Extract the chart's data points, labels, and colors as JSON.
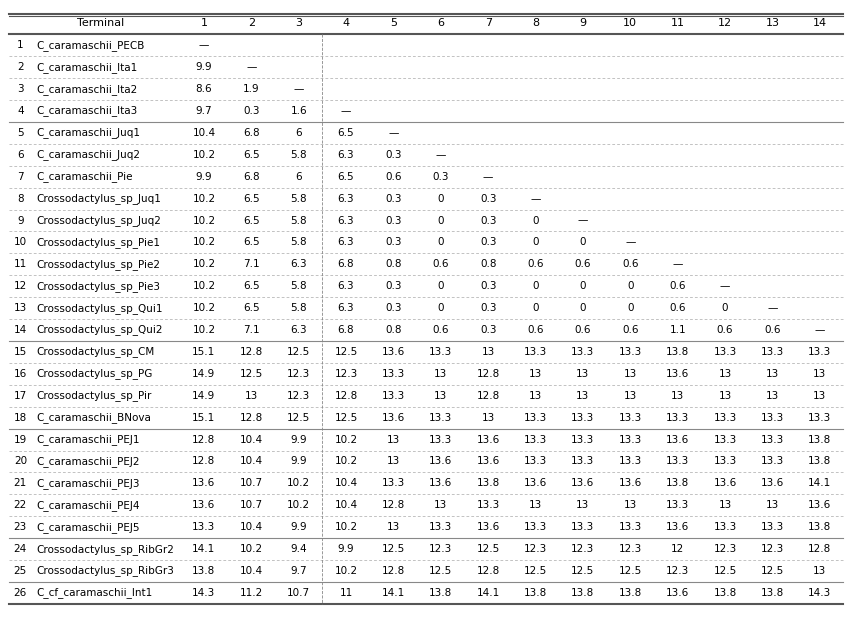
{
  "col_headers": [
    "Terminal",
    "1",
    "2",
    "3",
    "4",
    "5",
    "6",
    "7",
    "8",
    "9",
    "10",
    "11",
    "12",
    "13",
    "14"
  ],
  "rows": [
    [
      "1",
      "C_caramaschii_PECB",
      "—",
      "",
      "",
      "",
      "",
      "",
      "",
      "",
      "",
      "",
      "",
      "",
      "",
      ""
    ],
    [
      "2",
      "C_caramaschii_Ita1",
      "9.9",
      "—",
      "",
      "",
      "",
      "",
      "",
      "",
      "",
      "",
      "",
      "",
      "",
      ""
    ],
    [
      "3",
      "C_caramaschii_Ita2",
      "8.6",
      "1.9",
      "—",
      "",
      "",
      "",
      "",
      "",
      "",
      "",
      "",
      "",
      "",
      ""
    ],
    [
      "4",
      "C_caramaschii_Ita3",
      "9.7",
      "0.3",
      "1.6",
      "—",
      "",
      "",
      "",
      "",
      "",
      "",
      "",
      "",
      "",
      ""
    ],
    [
      "5",
      "C_caramaschii_Juq1",
      "10.4",
      "6.8",
      "6",
      "6.5",
      "—",
      "",
      "",
      "",
      "",
      "",
      "",
      "",
      "",
      ""
    ],
    [
      "6",
      "C_caramaschii_Juq2",
      "10.2",
      "6.5",
      "5.8",
      "6.3",
      "0.3",
      "—",
      "",
      "",
      "",
      "",
      "",
      "",
      "",
      ""
    ],
    [
      "7",
      "C_caramaschii_Pie",
      "9.9",
      "6.8",
      "6",
      "6.5",
      "0.6",
      "0.3",
      "—",
      "",
      "",
      "",
      "",
      "",
      "",
      ""
    ],
    [
      "8",
      "Crossodactylus_sp_Juq1",
      "10.2",
      "6.5",
      "5.8",
      "6.3",
      "0.3",
      "0",
      "0.3",
      "—",
      "",
      "",
      "",
      "",
      "",
      ""
    ],
    [
      "9",
      "Crossodactylus_sp_Juq2",
      "10.2",
      "6.5",
      "5.8",
      "6.3",
      "0.3",
      "0",
      "0.3",
      "0",
      "—",
      "",
      "",
      "",
      "",
      ""
    ],
    [
      "10",
      "Crossodactylus_sp_Pie1",
      "10.2",
      "6.5",
      "5.8",
      "6.3",
      "0.3",
      "0",
      "0.3",
      "0",
      "0",
      "—",
      "",
      "",
      "",
      ""
    ],
    [
      "11",
      "Crossodactylus_sp_Pie2",
      "10.2",
      "7.1",
      "6.3",
      "6.8",
      "0.8",
      "0.6",
      "0.8",
      "0.6",
      "0.6",
      "0.6",
      "—",
      "",
      "",
      ""
    ],
    [
      "12",
      "Crossodactylus_sp_Pie3",
      "10.2",
      "6.5",
      "5.8",
      "6.3",
      "0.3",
      "0",
      "0.3",
      "0",
      "0",
      "0",
      "0.6",
      "—",
      "",
      ""
    ],
    [
      "13",
      "Crossodactylus_sp_Qui1",
      "10.2",
      "6.5",
      "5.8",
      "6.3",
      "0.3",
      "0",
      "0.3",
      "0",
      "0",
      "0",
      "0.6",
      "0",
      "—",
      ""
    ],
    [
      "14",
      "Crossodactylus_sp_Qui2",
      "10.2",
      "7.1",
      "6.3",
      "6.8",
      "0.8",
      "0.6",
      "0.3",
      "0.6",
      "0.6",
      "0.6",
      "1.1",
      "0.6",
      "0.6",
      "—"
    ],
    [
      "15",
      "Crossodactylus_sp_CM",
      "15.1",
      "12.8",
      "12.5",
      "12.5",
      "13.6",
      "13.3",
      "13",
      "13.3",
      "13.3",
      "13.3",
      "13.8",
      "13.3",
      "13.3",
      "13.3"
    ],
    [
      "16",
      "Crossodactylus_sp_PG",
      "14.9",
      "12.5",
      "12.3",
      "12.3",
      "13.3",
      "13",
      "12.8",
      "13",
      "13",
      "13",
      "13.6",
      "13",
      "13",
      "13"
    ],
    [
      "17",
      "Crossodactylus_sp_Pir",
      "14.9",
      "13",
      "12.3",
      "12.8",
      "13.3",
      "13",
      "12.8",
      "13",
      "13",
      "13",
      "13",
      "13",
      "13",
      "13"
    ],
    [
      "18",
      "C_caramaschii_BNova",
      "15.1",
      "12.8",
      "12.5",
      "12.5",
      "13.6",
      "13.3",
      "13",
      "13.3",
      "13.3",
      "13.3",
      "13.3",
      "13.3",
      "13.3",
      "13.3"
    ],
    [
      "19",
      "C_caramaschii_PEJ1",
      "12.8",
      "10.4",
      "9.9",
      "10.2",
      "13",
      "13.3",
      "13.6",
      "13.3",
      "13.3",
      "13.3",
      "13.6",
      "13.3",
      "13.3",
      "13.8"
    ],
    [
      "20",
      "C_caramaschii_PEJ2",
      "12.8",
      "10.4",
      "9.9",
      "10.2",
      "13",
      "13.6",
      "13.6",
      "13.3",
      "13.3",
      "13.3",
      "13.3",
      "13.3",
      "13.3",
      "13.8"
    ],
    [
      "21",
      "C_caramaschii_PEJ3",
      "13.6",
      "10.7",
      "10.2",
      "10.4",
      "13.3",
      "13.6",
      "13.8",
      "13.6",
      "13.6",
      "13.6",
      "13.8",
      "13.6",
      "13.6",
      "14.1"
    ],
    [
      "22",
      "C_caramaschii_PEJ4",
      "13.6",
      "10.7",
      "10.2",
      "10.4",
      "12.8",
      "13",
      "13.3",
      "13",
      "13",
      "13",
      "13.3",
      "13",
      "13",
      "13.6"
    ],
    [
      "23",
      "C_caramaschii_PEJ5",
      "13.3",
      "10.4",
      "9.9",
      "10.2",
      "13",
      "13.3",
      "13.6",
      "13.3",
      "13.3",
      "13.3",
      "13.6",
      "13.3",
      "13.3",
      "13.8"
    ],
    [
      "24",
      "Crossodactylus_sp_RibGr2",
      "14.1",
      "10.2",
      "9.4",
      "9.9",
      "12.5",
      "12.3",
      "12.5",
      "12.3",
      "12.3",
      "12.3",
      "12",
      "12.3",
      "12.3",
      "12.8"
    ],
    [
      "25",
      "Crossodactylus_sp_RibGr3",
      "13.8",
      "10.4",
      "9.7",
      "10.2",
      "12.8",
      "12.5",
      "12.8",
      "12.5",
      "12.5",
      "12.5",
      "12.3",
      "12.5",
      "12.5",
      "13"
    ],
    [
      "26",
      "C_cf_caramaschii_Int1",
      "14.3",
      "11.2",
      "10.7",
      "11",
      "14.1",
      "13.8",
      "14.1",
      "13.8",
      "13.8",
      "13.8",
      "13.6",
      "13.8",
      "13.8",
      "14.3"
    ]
  ],
  "group_separators": [
    4,
    14,
    18,
    23,
    25
  ],
  "col4_separator": 4,
  "bg_color": "#ffffff",
  "header_bg": "#ffffff",
  "line_color": "#aaaaaa",
  "thick_line_color": "#555555",
  "text_color": "#000000",
  "font_size": 7.5,
  "header_font_size": 8
}
